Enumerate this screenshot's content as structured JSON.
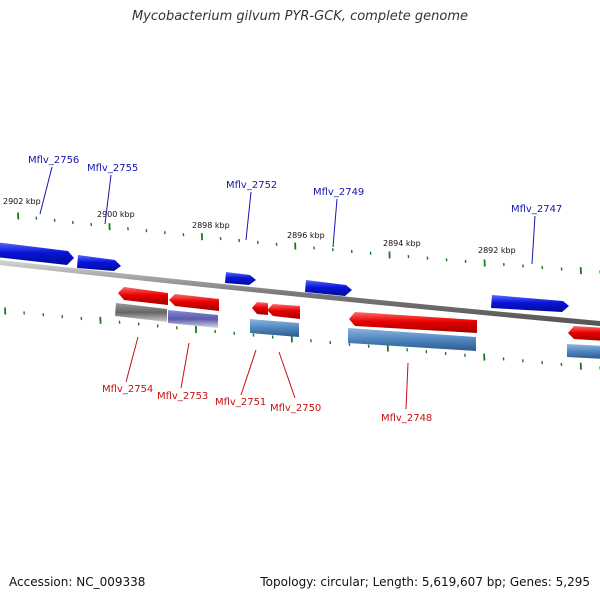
{
  "title": "Mycobacterium gilvum PYR-GCK, complete genome",
  "footer": {
    "accession": "Accession: NC_009338",
    "summary": "Topology: circular; Length: 5,619,607 bp; Genes: 5,295"
  },
  "colors": {
    "forward_gene": "#0a14d8",
    "reverse_gene": "#e00000",
    "forward_label": "#1515b0",
    "reverse_label": "#c81010",
    "tick": "#1a7a1a",
    "backbone": "#888888",
    "cds_blue": "#4f86c0",
    "cds_grey": "#6a6a6a",
    "cds_lavender": "#6f6fb8"
  },
  "ruler_labels": [
    "2902 kbp",
    "2900 kbp",
    "2898 kbp",
    "2896 kbp",
    "2894 kbp",
    "2892 kbp"
  ],
  "forward_genes": [
    {
      "label": "Mflv_2756"
    },
    {
      "label": "Mflv_2755"
    },
    {
      "label": "Mflv_2752"
    },
    {
      "label": "Mflv_2749"
    },
    {
      "label": "Mflv_2747"
    }
  ],
  "reverse_genes": [
    {
      "label": "Mflv_2754"
    },
    {
      "label": "Mflv_2753"
    },
    {
      "label": "Mflv_2751"
    },
    {
      "label": "Mflv_2750"
    },
    {
      "label": "Mflv_2748"
    }
  ]
}
